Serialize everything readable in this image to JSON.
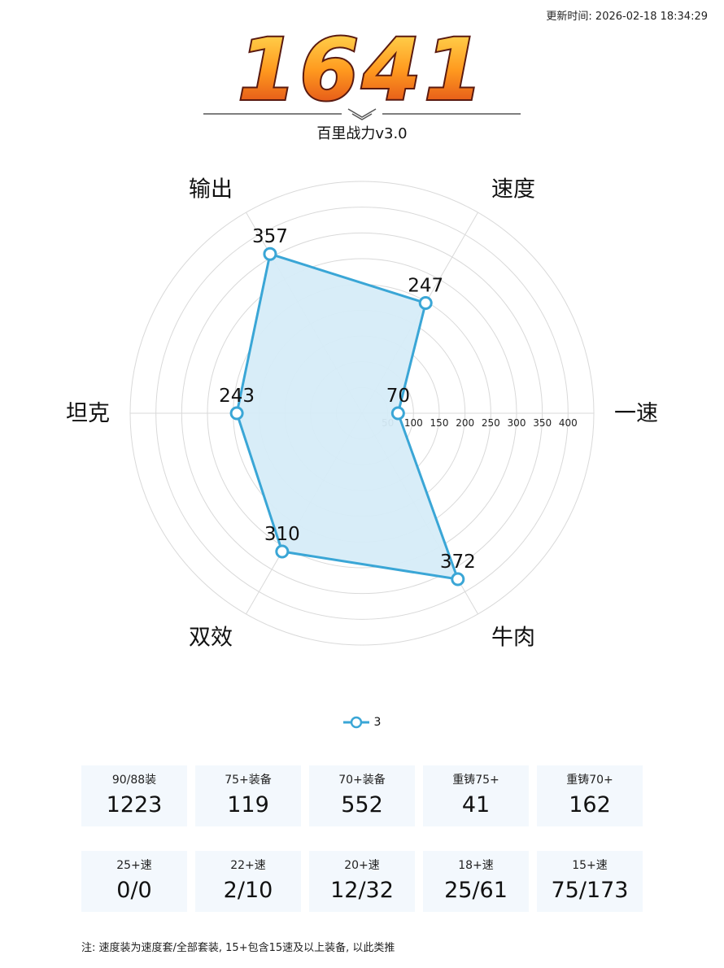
{
  "header": {
    "timestamp": "更新时间: 2026-02-18 18:34:29",
    "score": "1641",
    "subtitle": "百里战力v3.0"
  },
  "colors": {
    "series": "#3aa6d6",
    "fill": "#d6ecf8",
    "grid": "#d9d9d9",
    "tile_bg": "#f3f8fd",
    "logo_top": "#ffd23f",
    "logo_bottom": "#e4461a"
  },
  "chart_data": {
    "type": "radar",
    "axes": [
      "一速",
      "速度",
      "输出",
      "坦克",
      "双效",
      "牛肉"
    ],
    "rings": [
      50,
      100,
      150,
      200,
      250,
      300,
      350,
      400
    ],
    "rmax": 450,
    "series": [
      {
        "name": "3",
        "values": [
          70,
          247,
          357,
          243,
          310,
          372
        ]
      }
    ],
    "legend_position": "bottom"
  },
  "stats": {
    "row1": [
      {
        "label": "90/88装",
        "value": "1223"
      },
      {
        "label": "75+装备",
        "value": "119"
      },
      {
        "label": "70+装备",
        "value": "552"
      },
      {
        "label": "重铸75+",
        "value": "41"
      },
      {
        "label": "重铸70+",
        "value": "162"
      }
    ],
    "row2": [
      {
        "label": "25+速",
        "value": "0/0"
      },
      {
        "label": "22+速",
        "value": "2/10"
      },
      {
        "label": "20+速",
        "value": "12/32"
      },
      {
        "label": "18+速",
        "value": "25/61"
      },
      {
        "label": "15+速",
        "value": "75/173"
      }
    ]
  },
  "note": "注: 速度装为速度套/全部套装, 15+包含15速及以上装备, 以此类推"
}
